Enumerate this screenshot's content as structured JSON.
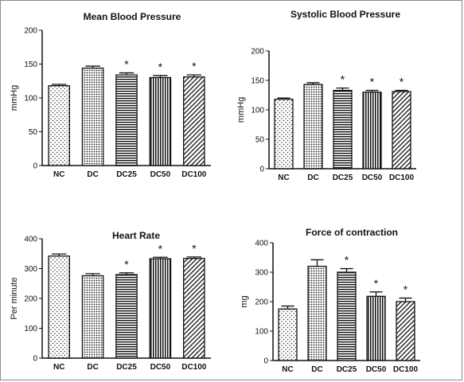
{
  "chart_data": [
    {
      "type": "bar",
      "title": "Mean Blood Pressure",
      "ylabel": "mmHg",
      "ylim": [
        0,
        200
      ],
      "yticks": [
        0,
        50,
        100,
        150,
        200
      ],
      "categories": [
        "NC",
        "DC",
        "DC25",
        "DC50",
        "DC100"
      ],
      "values": [
        118,
        144,
        134,
        130,
        131
      ],
      "errors": [
        2,
        3,
        3,
        3,
        3
      ],
      "significance": [
        "",
        "",
        "*",
        "*",
        "*"
      ]
    },
    {
      "type": "bar",
      "title": "Systolic Blood Pressure",
      "ylabel": "mmHg",
      "ylim": [
        0,
        200
      ],
      "yticks": [
        0,
        50,
        100,
        150,
        200
      ],
      "categories": [
        "NC",
        "DC",
        "DC25",
        "DC50",
        "DC100"
      ],
      "values": [
        118,
        143,
        133,
        130,
        131
      ],
      "errors": [
        2,
        3,
        4,
        3,
        2
      ],
      "significance": [
        "",
        "",
        "*",
        "*",
        "*"
      ]
    },
    {
      "type": "bar",
      "title": "Heart Rate",
      "ylabel": "Per minute",
      "ylim": [
        0,
        400
      ],
      "yticks": [
        0,
        100,
        200,
        300,
        400
      ],
      "categories": [
        "NC",
        "DC",
        "DC25",
        "DC50",
        "DC100"
      ],
      "values": [
        342,
        276,
        280,
        333,
        334
      ],
      "errors": [
        7,
        7,
        6,
        5,
        5
      ],
      "significance": [
        "",
        "",
        "*",
        "*",
        "*"
      ]
    },
    {
      "type": "bar",
      "title": "Force of contraction",
      "ylabel": "mg",
      "ylim": [
        0,
        400
      ],
      "yticks": [
        0,
        100,
        200,
        300,
        400
      ],
      "categories": [
        "NC",
        "DC",
        "DC25",
        "DC50",
        "DC100"
      ],
      "values": [
        175,
        320,
        300,
        218,
        200
      ],
      "errors": [
        10,
        22,
        12,
        15,
        12
      ],
      "significance": [
        "",
        "",
        "*",
        "*",
        "*"
      ]
    }
  ],
  "patterns": [
    "dots",
    "dense-dots",
    "horizontal-lines",
    "vertical-lines",
    "diagonal-lines"
  ]
}
